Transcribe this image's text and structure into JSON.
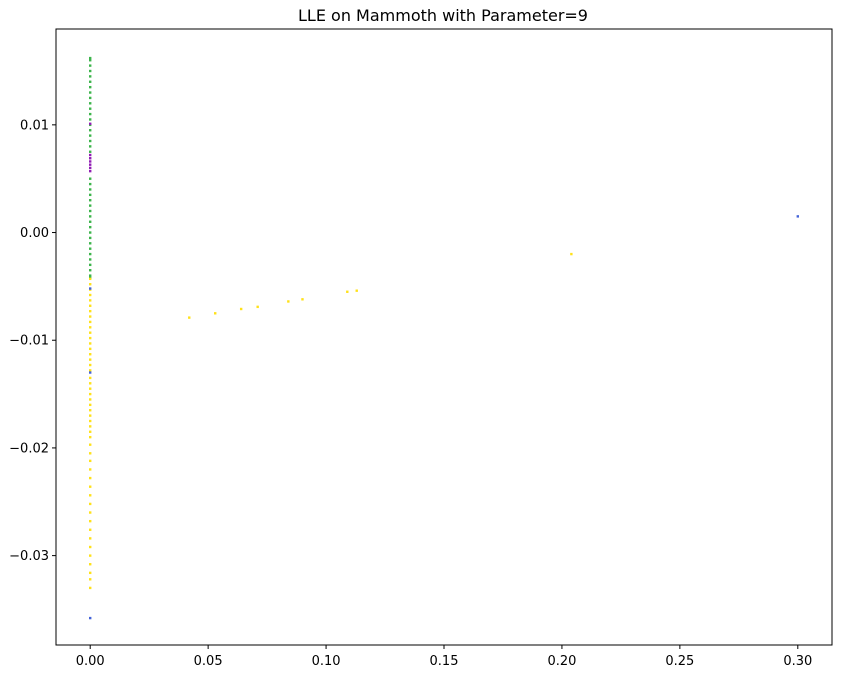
{
  "chart_data": {
    "type": "scatter",
    "title": "LLE on Mammoth with Parameter=9",
    "xlabel": "",
    "ylabel": "",
    "xlim": [
      -0.0145,
      0.3145
    ],
    "ylim": [
      -0.0383,
      0.0189
    ],
    "grid": false,
    "xticks": [
      0.0,
      0.05,
      0.1,
      0.15,
      0.2,
      0.25,
      0.3
    ],
    "xtick_labels": [
      "0.00",
      "0.05",
      "0.10",
      "0.15",
      "0.20",
      "0.25",
      "0.30"
    ],
    "yticks": [
      -0.03,
      -0.02,
      -0.01,
      0.0,
      0.01
    ],
    "ytick_labels": [
      "−0.03",
      "−0.02",
      "−0.01",
      "0.00",
      "0.01"
    ],
    "series": [
      {
        "color": "#3cb44b",
        "points": [
          [
            0.0,
            0.0162
          ],
          [
            0.0,
            0.016
          ],
          [
            0.0,
            0.0155
          ],
          [
            0.0,
            0.015
          ],
          [
            0.0,
            0.0145
          ],
          [
            0.0,
            0.014
          ],
          [
            0.0,
            0.0135
          ],
          [
            0.0,
            0.013
          ],
          [
            0.0,
            0.0125
          ],
          [
            0.0,
            0.012
          ],
          [
            0.0,
            0.0115
          ],
          [
            0.0,
            0.011
          ],
          [
            0.0,
            0.0105
          ],
          [
            0.0,
            0.01
          ],
          [
            0.0,
            0.0095
          ],
          [
            0.0,
            0.009
          ],
          [
            0.0,
            0.0085
          ],
          [
            0.0,
            0.008
          ],
          [
            0.0,
            0.0075
          ],
          [
            0.0,
            0.005
          ],
          [
            0.0,
            0.0045
          ],
          [
            0.0,
            0.004
          ],
          [
            0.0,
            0.0035
          ],
          [
            0.0,
            0.003
          ],
          [
            0.0,
            0.0025
          ],
          [
            0.0,
            0.002
          ],
          [
            0.0,
            0.0015
          ],
          [
            0.0,
            0.001
          ],
          [
            0.0,
            0.0005
          ],
          [
            0.0,
            0.0
          ],
          [
            0.0,
            -0.0005
          ],
          [
            0.0,
            -0.001
          ],
          [
            0.0,
            -0.0015
          ],
          [
            0.0,
            -0.002
          ],
          [
            0.0,
            -0.0025
          ],
          [
            0.0,
            -0.003
          ],
          [
            0.0,
            -0.0035
          ],
          [
            0.0,
            -0.004
          ],
          [
            0.0,
            -0.0042
          ]
        ]
      },
      {
        "color": "#911eb4",
        "points": [
          [
            0.0,
            0.0072
          ],
          [
            0.0,
            0.0069
          ],
          [
            0.0,
            0.0066
          ],
          [
            0.0,
            0.0063
          ],
          [
            0.0,
            0.006
          ],
          [
            0.0,
            0.0057
          ],
          [
            0.0,
            0.0101
          ]
        ]
      },
      {
        "color": "#ffe119",
        "points": [
          [
            0.0,
            -0.0043
          ],
          [
            0.0,
            -0.0048
          ],
          [
            0.0,
            -0.0053
          ],
          [
            0.0,
            -0.0058
          ],
          [
            0.0,
            -0.0063
          ],
          [
            0.0,
            -0.0068
          ],
          [
            0.0,
            -0.0073
          ],
          [
            0.0,
            -0.0078
          ],
          [
            0.0,
            -0.0083
          ],
          [
            0.0,
            -0.0088
          ],
          [
            0.0,
            -0.0093
          ],
          [
            0.0,
            -0.0098
          ],
          [
            0.0,
            -0.0103
          ],
          [
            0.0,
            -0.0108
          ],
          [
            0.0,
            -0.0113
          ],
          [
            0.0,
            -0.0118
          ],
          [
            0.0,
            -0.0123
          ],
          [
            0.0,
            -0.0128
          ],
          [
            0.0,
            -0.0135
          ],
          [
            0.0,
            -0.014
          ],
          [
            0.0,
            -0.0145
          ],
          [
            0.0,
            -0.015
          ],
          [
            0.0,
            -0.0155
          ],
          [
            0.0,
            -0.016
          ],
          [
            0.0,
            -0.0165
          ],
          [
            0.0,
            -0.017
          ],
          [
            0.0,
            -0.0175
          ],
          [
            0.0,
            -0.018
          ],
          [
            0.0,
            -0.0185
          ],
          [
            0.0,
            -0.019
          ],
          [
            0.0,
            -0.0197
          ],
          [
            0.0,
            -0.0205
          ],
          [
            0.0,
            -0.0212
          ],
          [
            0.0,
            -0.022
          ],
          [
            0.0,
            -0.0228
          ],
          [
            0.0,
            -0.0236
          ],
          [
            0.0,
            -0.0244
          ],
          [
            0.0,
            -0.0252
          ],
          [
            0.0,
            -0.026
          ],
          [
            0.0,
            -0.0268
          ],
          [
            0.0,
            -0.0276
          ],
          [
            0.0,
            -0.0284
          ],
          [
            0.0,
            -0.0292
          ],
          [
            0.0,
            -0.03
          ],
          [
            0.0,
            -0.0308
          ],
          [
            0.0,
            -0.0316
          ],
          [
            0.0,
            -0.0322
          ],
          [
            0.0,
            -0.033
          ],
          [
            0.042,
            -0.0079
          ],
          [
            0.053,
            -0.0075
          ],
          [
            0.064,
            -0.0071
          ],
          [
            0.071,
            -0.0069
          ],
          [
            0.084,
            -0.0064
          ],
          [
            0.09,
            -0.0062
          ],
          [
            0.109,
            -0.0055
          ],
          [
            0.113,
            -0.0054
          ],
          [
            0.204,
            -0.002
          ]
        ]
      },
      {
        "color": "#4363d8",
        "points": [
          [
            0.3,
            0.0015
          ],
          [
            0.0,
            -0.0358
          ],
          [
            0.0,
            -0.013
          ],
          [
            0.0,
            -0.0052
          ]
        ]
      }
    ]
  }
}
